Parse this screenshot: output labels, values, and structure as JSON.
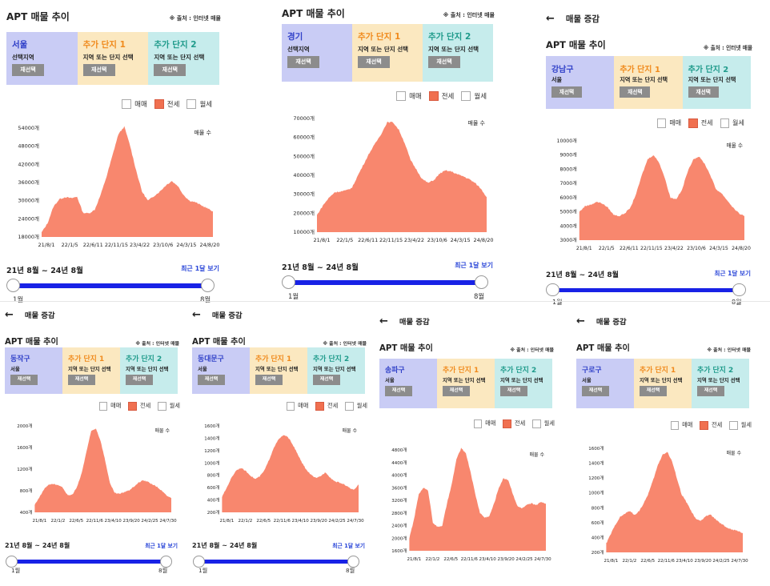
{
  "common": {
    "back_arrow": "←",
    "nav_title": "매물 증감",
    "title": "APT 매물 추이",
    "source": "※ 출처 : 인터넷 매물",
    "add1_title": "추가 단지 1",
    "add2_title": "추가 단지 2",
    "add_sub": "지역 또는 단지 선택",
    "reselect": "재선택",
    "legend": [
      "매매",
      "전세",
      "월세"
    ],
    "count_label": "매물 수",
    "range": "21년 8월 ~ 24년 8월",
    "recent": "최근 1달 보기",
    "start": "1월",
    "end": "8월"
  },
  "colors": {
    "box1": "#c9ccf5",
    "box2": "#fbe8c0",
    "box3": "#c6ecec",
    "add1": "#f08a1c",
    "add2": "#1e9a8a",
    "region": "#3040c8",
    "area": "#f8876e",
    "track": "#1822e6"
  },
  "panels": [
    {
      "region": "서울",
      "sub": "선택지역",
      "chart_data": {
        "type": "area",
        "title": "APT 매물 추이",
        "series_name": "전세",
        "yticks": [
          "54000개",
          "48000개",
          "42000개",
          "36000개",
          "30000개",
          "24000개",
          "18000개"
        ],
        "ylim": [
          18000,
          54000
        ],
        "xticks": [
          "21/8/1",
          "22/1/5",
          "22/6/11",
          "22/11/15",
          "23/4/22",
          "23/10/6",
          "24/3/15",
          "24/8/20"
        ],
        "values": [
          19500,
          22500,
          28000,
          30500,
          31200,
          30800,
          31300,
          26000,
          25800,
          27000,
          32000,
          38000,
          45000,
          52000,
          54500,
          48000,
          40000,
          33000,
          30000,
          31500,
          33000,
          35000,
          36500,
          35000,
          32000,
          30000,
          29500,
          28500,
          27500,
          26500
        ]
      }
    },
    {
      "region": "경기",
      "sub": "선택지역",
      "chart_data": {
        "type": "area",
        "title": "APT 매물 추이",
        "series_name": "전세",
        "yticks": [
          "70000개",
          "60000개",
          "50000개",
          "40000개",
          "30000개",
          "20000개",
          "10000개"
        ],
        "ylim": [
          10000,
          70000
        ],
        "xticks": [
          "21/8/1",
          "22/1/5",
          "22/6/11",
          "22/11/15",
          "23/4/22",
          "23/10/6",
          "24/3/15",
          "24/8/20"
        ],
        "values": [
          19000,
          24000,
          28000,
          31000,
          31500,
          32000,
          33500,
          40000,
          46000,
          52000,
          57000,
          62000,
          68000,
          68000,
          64000,
          57000,
          48000,
          43000,
          38000,
          36000,
          37500,
          41000,
          42500,
          42000,
          40500,
          39500,
          38000,
          36000,
          33000,
          28500
        ]
      }
    },
    {
      "region": "강남구",
      "sub": "서울",
      "chart_data": {
        "type": "area",
        "title": "APT 매물 추이",
        "series_name": "전세",
        "yticks": [
          "10000개",
          "9000개",
          "8000개",
          "7000개",
          "6000개",
          "5000개",
          "4000개",
          "3000개"
        ],
        "ylim": [
          3000,
          10000
        ],
        "xticks": [
          "21/8/1",
          "22/1/5",
          "22/6/11",
          "22/11/15",
          "23/4/22",
          "23/10/6",
          "24/3/15",
          "24/8/20"
        ],
        "values": [
          5000,
          5400,
          5500,
          5700,
          5600,
          5300,
          4800,
          4700,
          4900,
          5300,
          6300,
          7600,
          8700,
          9000,
          8500,
          7400,
          6000,
          5900,
          6500,
          7800,
          8700,
          8900,
          8400,
          7600,
          6600,
          6300,
          5800,
          5300,
          4900,
          4700
        ]
      }
    },
    {
      "region": "동작구",
      "sub": "서울",
      "chart_data": {
        "type": "area",
        "title": "APT 매물 추이",
        "series_name": "전세",
        "yticks": [
          "2000개",
          "1600개",
          "1200개",
          "800개",
          "400개"
        ],
        "ylim": [
          400,
          2100
        ],
        "xticks": [
          "21/8/1",
          "22/1/2",
          "22/6/5",
          "22/11/6",
          "23/4/10",
          "23/9/20",
          "24/2/25",
          "24/7/30"
        ],
        "values": [
          550,
          700,
          860,
          950,
          960,
          930,
          880,
          730,
          750,
          900,
          1180,
          1600,
          2000,
          2050,
          1800,
          1400,
          960,
          780,
          760,
          800,
          830,
          900,
          980,
          1030,
          1000,
          950,
          900,
          820,
          730,
          680
        ]
      }
    },
    {
      "region": "동대문구",
      "sub": "서울",
      "chart_data": {
        "type": "area",
        "title": "APT 매물 추이",
        "series_name": "전세",
        "yticks": [
          "1600개",
          "1400개",
          "1200개",
          "1000개",
          "800개",
          "600개",
          "400개",
          "200개"
        ],
        "ylim": [
          200,
          1600
        ],
        "xticks": [
          "21/8/1",
          "22/1/2",
          "22/6/5",
          "22/11/6",
          "23/4/10",
          "23/9/20",
          "24/2/25",
          "24/7/30"
        ],
        "values": [
          450,
          600,
          760,
          880,
          920,
          870,
          800,
          740,
          780,
          880,
          1050,
          1250,
          1380,
          1450,
          1420,
          1300,
          1150,
          1000,
          880,
          800,
          750,
          790,
          850,
          760,
          700,
          680,
          650,
          600,
          560,
          650
        ]
      }
    },
    {
      "region": "송파구",
      "sub": "서울",
      "chart_data": {
        "type": "area",
        "title": "APT 매물 추이",
        "series_name": "전세",
        "yticks": [
          "4800개",
          "4400개",
          "4000개",
          "3600개",
          "3200개",
          "2800개",
          "2400개",
          "2000개",
          "1600개"
        ],
        "ylim": [
          1600,
          4800
        ],
        "xticks": [
          "21/8/1",
          "22/1/2",
          "22/6/5",
          "22/11/6",
          "23/4/10",
          "23/9/20",
          "24/2/25",
          "24/7/30"
        ],
        "values": [
          2000,
          2600,
          3400,
          3600,
          3500,
          2500,
          2350,
          2400,
          3100,
          3700,
          4500,
          4850,
          4700,
          4100,
          3400,
          2800,
          2650,
          2700,
          3100,
          3600,
          3900,
          3850,
          3400,
          3000,
          2950,
          3050,
          3100,
          3050,
          3150,
          3100
        ]
      }
    },
    {
      "region": "구로구",
      "sub": "서울",
      "chart_data": {
        "type": "area",
        "title": "APT 매물 추이",
        "series_name": "전세",
        "yticks": [
          "1600개",
          "1400개",
          "1200개",
          "1000개",
          "800개",
          "600개",
          "400개",
          "200개"
        ],
        "ylim": [
          200,
          1600
        ],
        "xticks": [
          "21/8/1",
          "22/1/2",
          "22/6/5",
          "22/11/6",
          "23/4/10",
          "23/9/20",
          "24/2/25",
          "24/7/30"
        ],
        "values": [
          320,
          450,
          580,
          680,
          720,
          760,
          700,
          760,
          860,
          1000,
          1180,
          1380,
          1520,
          1550,
          1420,
          1200,
          980,
          880,
          760,
          650,
          620,
          680,
          710,
          660,
          600,
          560,
          520,
          500,
          490,
          460
        ]
      }
    }
  ]
}
